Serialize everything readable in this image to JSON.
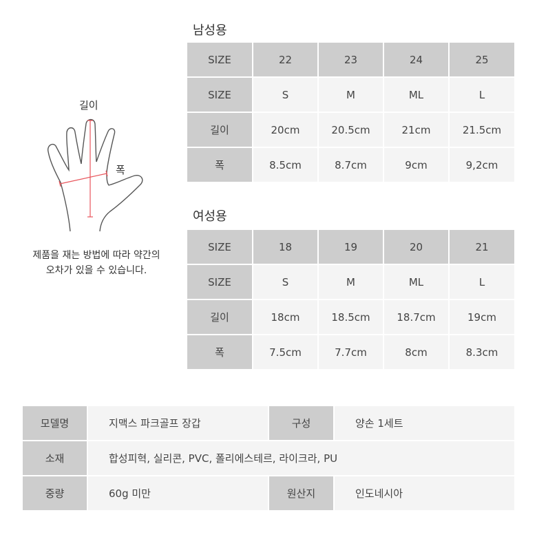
{
  "diagram": {
    "length_label": "길이",
    "width_label": "폭",
    "note_line1": "제품을 재는 방법에 따라 약간의",
    "note_line2": "오차가 있을 수 있습니다.",
    "measure_color": "#e8545a"
  },
  "men": {
    "title": "남성용",
    "rows": [
      [
        "SIZE",
        "22",
        "23",
        "24",
        "25"
      ],
      [
        "SIZE",
        "S",
        "M",
        "ML",
        "L"
      ],
      [
        "길이",
        "20cm",
        "20.5cm",
        "21cm",
        "21.5cm"
      ],
      [
        "폭",
        "8.5cm",
        "8.7cm",
        "9cm",
        "9,2cm"
      ]
    ]
  },
  "women": {
    "title": "여성용",
    "rows": [
      [
        "SIZE",
        "18",
        "19",
        "20",
        "21"
      ],
      [
        "SIZE",
        "S",
        "M",
        "ML",
        "L"
      ],
      [
        "길이",
        "18cm",
        "18.5cm",
        "18.7cm",
        "19cm"
      ],
      [
        "폭",
        "7.5cm",
        "7.7cm",
        "8cm",
        "8.3cm"
      ]
    ]
  },
  "info": {
    "model_label": "모델명",
    "model_value": "지맥스 파크골프 장갑",
    "composition_label": "구성",
    "composition_value": "양손 1세트",
    "material_label": "소재",
    "material_value": "합성피혁, 실리콘, PVC, 폴리에스테르, 라이크라, PU",
    "weight_label": "중량",
    "weight_value": "60g 미만",
    "origin_label": "원산지",
    "origin_value": "인도네시아"
  }
}
